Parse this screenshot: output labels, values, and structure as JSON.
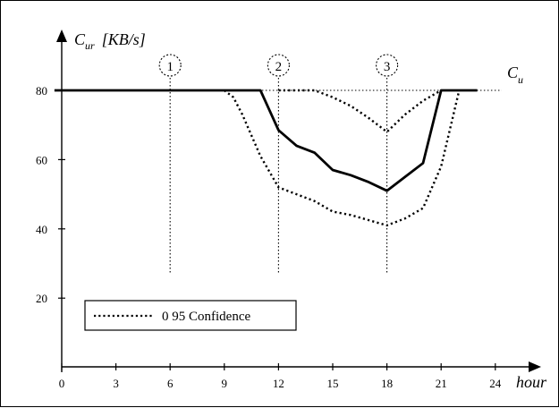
{
  "chart_data": {
    "type": "line",
    "ylabel_symbol": "C",
    "ylabel_subscript": "ur",
    "ylabel_unit": "[KB/s]",
    "xlabel": "hour",
    "reference_line": {
      "label_symbol": "C",
      "label_subscript": "u",
      "value": 80
    },
    "xlim": [
      0,
      24
    ],
    "ylim": [
      16,
      90
    ],
    "xticks": [
      0,
      3,
      6,
      9,
      12,
      15,
      18,
      21,
      24
    ],
    "yticks": [
      20,
      40,
      60,
      80
    ],
    "markers": [
      {
        "label": "1",
        "x": 6
      },
      {
        "label": "2",
        "x": 12
      },
      {
        "label": "3",
        "x": 18
      }
    ],
    "series": [
      {
        "style": "solid",
        "points": [
          [
            -0.4,
            80
          ],
          [
            11,
            80
          ],
          [
            12,
            68.5
          ],
          [
            13,
            64
          ],
          [
            14,
            62
          ],
          [
            15,
            57
          ],
          [
            16,
            55.5
          ],
          [
            17,
            53.5
          ],
          [
            18,
            51
          ],
          [
            19,
            55
          ],
          [
            20,
            59
          ],
          [
            21,
            80
          ],
          [
            23,
            80
          ]
        ]
      },
      {
        "style": "dotted",
        "points": [
          [
            9,
            80
          ],
          [
            9.5,
            78
          ],
          [
            10,
            73
          ],
          [
            11,
            61
          ],
          [
            12,
            52
          ],
          [
            13,
            50
          ],
          [
            14,
            48
          ],
          [
            15,
            45
          ],
          [
            16,
            44
          ],
          [
            17,
            42.5
          ],
          [
            18,
            41
          ],
          [
            19,
            43
          ],
          [
            20,
            46
          ],
          [
            21,
            58
          ],
          [
            22,
            80
          ]
        ]
      },
      {
        "style": "dotted",
        "points": [
          [
            12,
            80
          ],
          [
            14,
            80
          ],
          [
            15,
            78
          ],
          [
            16,
            75.5
          ],
          [
            17,
            72
          ],
          [
            18,
            68
          ],
          [
            19,
            73
          ],
          [
            20,
            77
          ],
          [
            21,
            80
          ]
        ]
      }
    ],
    "legend": {
      "label": "0 95 Confidence",
      "line_style": "dotted",
      "placement": "lower-left"
    }
  }
}
